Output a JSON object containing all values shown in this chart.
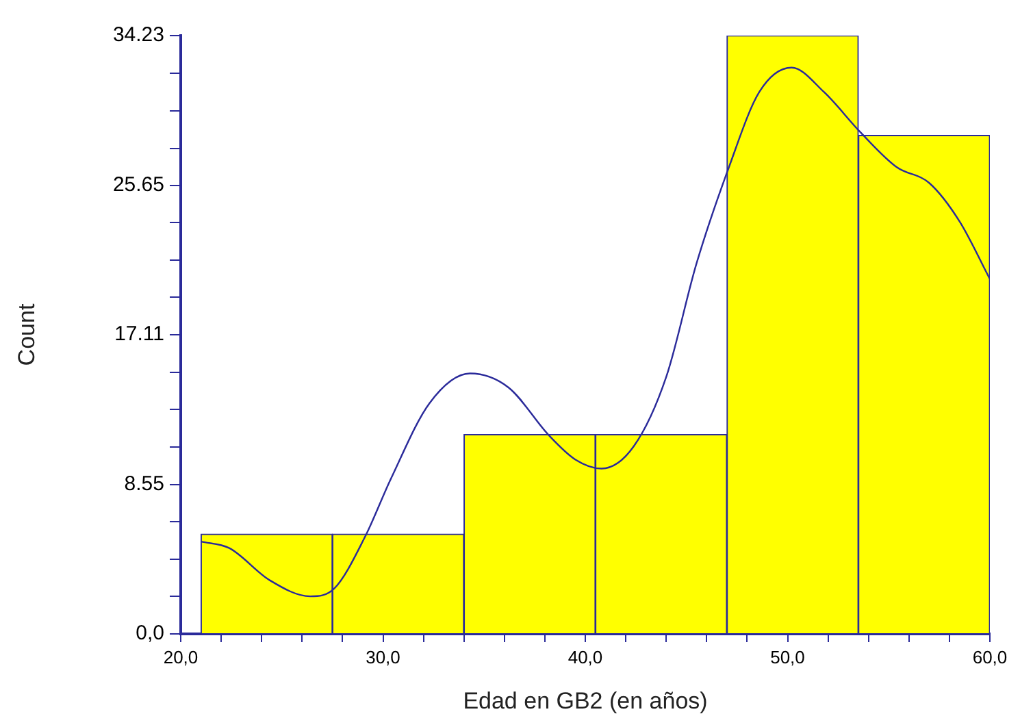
{
  "chart_data": {
    "type": "histogram",
    "xlabel": "Edad en GB2 (en años)",
    "ylabel": "Count",
    "series": [
      {
        "type": "histogram",
        "color": "#ffff00",
        "bins": [
          21,
          27.5,
          34,
          40.5,
          47,
          53.5,
          60
        ],
        "values": [
          5.71,
          5.71,
          11.41,
          11.41,
          34.23,
          28.53
        ]
      },
      {
        "type": "line",
        "color": "#2a2a9a",
        "x": [
          21.0,
          22.4,
          24.4,
          26.4,
          27.6,
          29.1,
          30.4,
          32.3,
          34.3,
          36.2,
          38.2,
          39.5,
          40.8,
          42.4,
          44.0,
          45.5,
          47.1,
          48.6,
          50.2,
          51.8,
          53.6,
          55.4,
          57.0,
          58.5,
          60.0
        ],
        "values": [
          5.28,
          4.91,
          3.07,
          2.15,
          2.61,
          5.53,
          8.9,
          13.2,
          14.9,
          14.1,
          11.36,
          9.98,
          9.46,
          10.74,
          14.7,
          21.2,
          26.7,
          31.0,
          32.4,
          31.0,
          28.7,
          26.7,
          25.8,
          23.6,
          20.3
        ]
      }
    ],
    "xlim": [
      20,
      60
    ],
    "xticks": [
      {
        "value": 20,
        "label": "20,0"
      },
      {
        "value": 22,
        "label": null
      },
      {
        "value": 24,
        "label": null
      },
      {
        "value": 26,
        "label": null
      },
      {
        "value": 28,
        "label": null
      },
      {
        "value": 30,
        "label": "30,0"
      },
      {
        "value": 32,
        "label": null
      },
      {
        "value": 34,
        "label": null
      },
      {
        "value": 36,
        "label": null
      },
      {
        "value": 38,
        "label": null
      },
      {
        "value": 40,
        "label": "40,0"
      },
      {
        "value": 42,
        "label": null
      },
      {
        "value": 44,
        "label": null
      },
      {
        "value": 46,
        "label": null
      },
      {
        "value": 48,
        "label": null
      },
      {
        "value": 50,
        "label": "50,0"
      },
      {
        "value": 52,
        "label": null
      },
      {
        "value": 54,
        "label": null
      },
      {
        "value": 56,
        "label": null
      },
      {
        "value": 58,
        "label": null
      },
      {
        "value": 60,
        "label": "60,0"
      }
    ],
    "ylim": [
      0,
      34.23
    ],
    "yticks": [
      {
        "value": 0,
        "label": "0,0"
      },
      {
        "value": 2.14,
        "label": null
      },
      {
        "value": 4.28,
        "label": null
      },
      {
        "value": 6.41,
        "label": null
      },
      8.55,
      {
        "value": 10.69,
        "label": null
      },
      {
        "value": 12.83,
        "label": null
      },
      {
        "value": 14.97,
        "label": null
      },
      17.11,
      {
        "value": 19.25,
        "label": null
      },
      {
        "value": 21.39,
        "label": null
      },
      {
        "value": 23.53,
        "label": null
      },
      25.65,
      {
        "value": 27.78,
        "label": null
      },
      {
        "value": 29.94,
        "label": null
      },
      {
        "value": 32.09,
        "label": null
      },
      34.23
    ],
    "grid": false,
    "legend": false,
    "marker": "none",
    "line_style": "solid"
  }
}
